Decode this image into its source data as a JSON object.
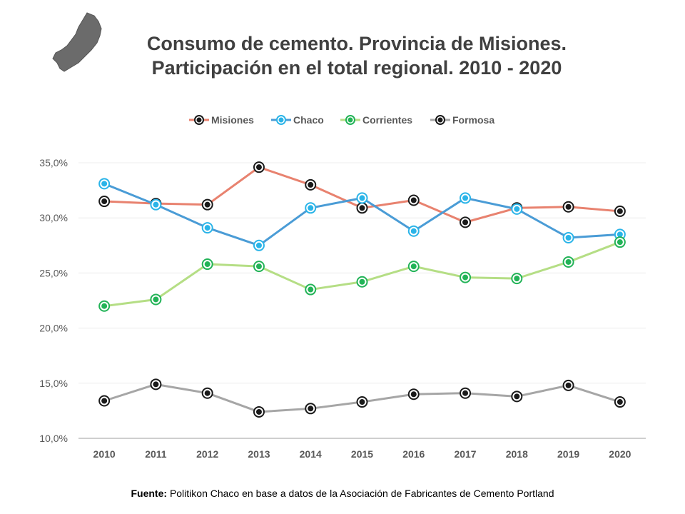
{
  "title_line1": "Consumo de cemento. Provincia de Misiones.",
  "title_line2": "Participación en el total regional. 2010 - 2020",
  "source_label": "Fuente:",
  "source_text": "Politikon Chaco en base a datos de la Asociación de Fabricantes de Cemento Portland",
  "chart_data": {
    "type": "line",
    "categories": [
      "2010",
      "2011",
      "2012",
      "2013",
      "2014",
      "2015",
      "2016",
      "2017",
      "2018",
      "2019",
      "2020"
    ],
    "series": [
      {
        "name": "Misiones",
        "color": "#E8826F",
        "marker": "#1a1a1a",
        "values": [
          31.5,
          31.3,
          31.2,
          34.6,
          33.0,
          30.9,
          31.6,
          29.6,
          30.9,
          31.0,
          30.6
        ]
      },
      {
        "name": "Chaco",
        "color": "#4A9CD6",
        "marker": "#2AB4E8",
        "values": [
          33.1,
          31.2,
          29.1,
          27.5,
          30.9,
          31.8,
          28.8,
          31.8,
          30.8,
          28.2,
          28.5
        ]
      },
      {
        "name": "Corrientes",
        "color": "#B5DE85",
        "marker": "#22B357",
        "values": [
          22.0,
          22.6,
          25.8,
          25.6,
          23.5,
          24.2,
          25.6,
          24.6,
          24.5,
          26.0,
          27.8
        ]
      },
      {
        "name": "Formosa",
        "color": "#A6A6A6",
        "marker": "#1a1a1a",
        "values": [
          13.4,
          14.9,
          14.1,
          12.4,
          12.7,
          13.3,
          14.0,
          14.1,
          13.8,
          14.8,
          13.3
        ]
      }
    ],
    "ylim": [
      10,
      35
    ],
    "yticks": [
      10,
      15,
      20,
      25,
      30,
      35
    ],
    "ytick_labels": [
      "10,0%",
      "15,0%",
      "20,0%",
      "25,0%",
      "30,0%",
      "35,0%"
    ],
    "grid": true,
    "legend_position": "top"
  }
}
